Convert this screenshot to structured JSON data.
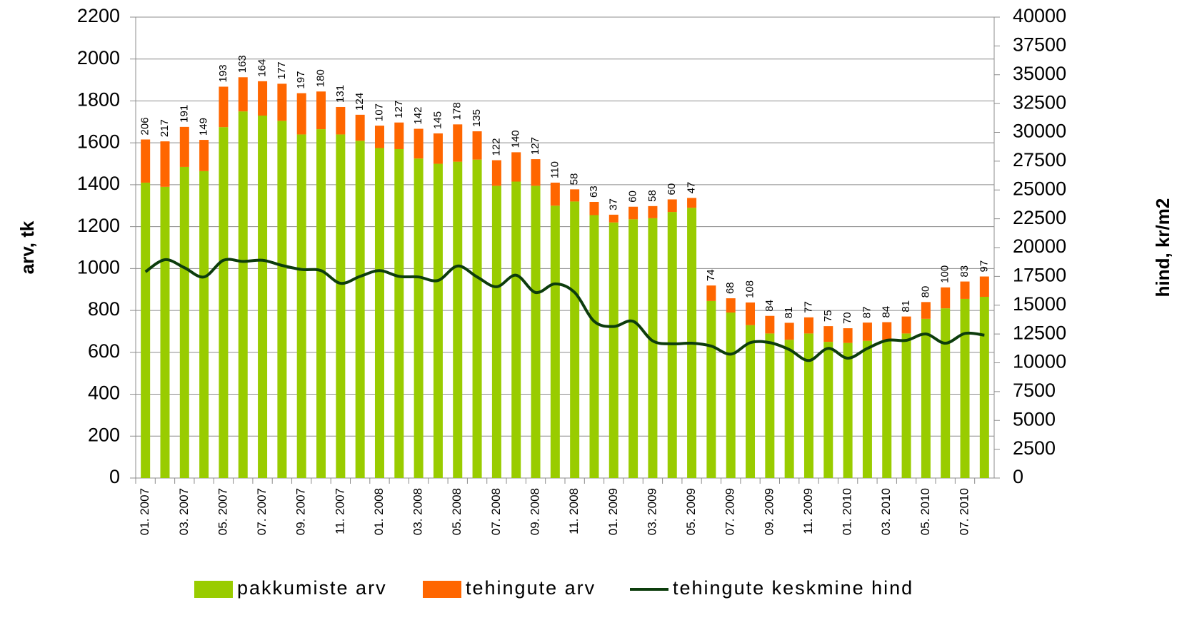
{
  "chart_data": {
    "type": "stacked-bar-line",
    "categories": [
      "01. 2007",
      null,
      "03. 2007",
      null,
      "05. 2007",
      null,
      "07. 2007",
      null,
      "09. 2007",
      null,
      "11. 2007",
      null,
      "01. 2008",
      null,
      "03. 2008",
      null,
      "05. 2008",
      null,
      "07. 2008",
      null,
      "09. 2008",
      null,
      "11. 2008",
      null,
      "01. 2009",
      null,
      "03. 2009",
      null,
      "05. 2009",
      null,
      "07. 2009",
      null,
      "09. 2009",
      null,
      "11. 2009",
      null,
      "01. 2010",
      null,
      "03. 2010",
      null,
      "05. 2010",
      null,
      "07. 2010",
      null
    ],
    "series": [
      {
        "name": "pakkumiste arv",
        "color": "#99cc00",
        "kind": "bar",
        "values": [
          1410,
          1390,
          1485,
          1465,
          1675,
          1750,
          1730,
          1705,
          1640,
          1665,
          1640,
          1610,
          1575,
          1570,
          1525,
          1500,
          1510,
          1520,
          1395,
          1415,
          1395,
          1300,
          1320,
          1255,
          1220,
          1235,
          1240,
          1270,
          1290,
          845,
          790,
          730,
          690,
          660,
          690,
          650,
          645,
          655,
          660,
          690,
          760,
          810,
          855,
          865
        ]
      },
      {
        "name": "tehingute arv",
        "color": "#ff6600",
        "kind": "bar",
        "values": [
          206,
          217,
          191,
          149,
          193,
          163,
          164,
          177,
          197,
          180,
          131,
          124,
          107,
          127,
          142,
          145,
          178,
          135,
          122,
          140,
          127,
          110,
          58,
          63,
          37,
          60,
          58,
          60,
          47,
          74,
          68,
          108,
          84,
          81,
          77,
          75,
          70,
          87,
          84,
          81,
          80,
          100,
          83,
          97
        ]
      },
      {
        "name": "tehingute keskmine hind",
        "color": "#0d3d0d",
        "kind": "line",
        "axis": "y2",
        "values": [
          17900,
          18950,
          18250,
          17450,
          18900,
          18800,
          18900,
          18450,
          18100,
          18000,
          16900,
          17500,
          18000,
          17500,
          17450,
          17150,
          18400,
          17450,
          16600,
          17600,
          16100,
          16850,
          16100,
          13600,
          13150,
          13600,
          11900,
          11650,
          11700,
          11450,
          10750,
          11750,
          11750,
          11150,
          10200,
          11250,
          10400,
          11250,
          11950,
          11950,
          12500,
          11700,
          12550,
          12400
        ]
      }
    ],
    "ylabel": "arv, tk",
    "y2label": "hind, kr/m2",
    "ylim": [
      0,
      2200
    ],
    "yticks": [
      0,
      200,
      400,
      600,
      800,
      1000,
      1200,
      1400,
      1600,
      1800,
      2000,
      2200
    ],
    "y2lim": [
      0,
      40000
    ],
    "y2ticks": [
      0,
      2500,
      5000,
      7500,
      10000,
      12500,
      15000,
      17500,
      20000,
      22500,
      25000,
      27500,
      30000,
      32500,
      35000,
      37500,
      40000
    ],
    "grid": true,
    "legend": "bottom"
  }
}
